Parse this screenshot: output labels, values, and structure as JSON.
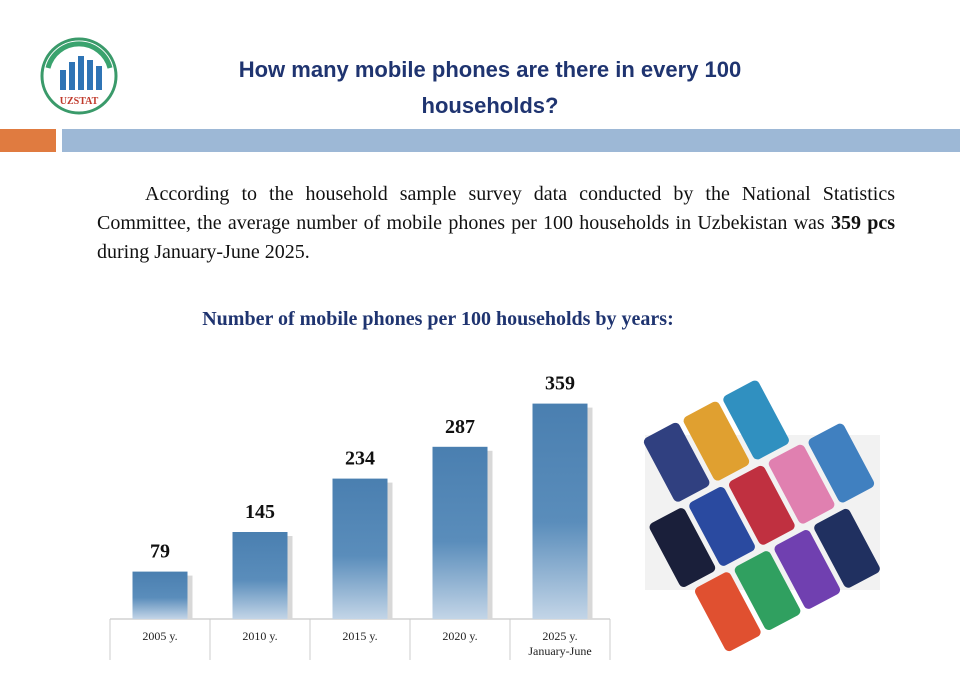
{
  "header": {
    "logo_text": "UZSTAT",
    "title": "How many mobile phones are there in every 100 households?"
  },
  "paragraph": {
    "text_before": "According to the household sample survey data conducted by the National Statistics Committee, the average number of mobile phones per 100 households in Uzbekistan was ",
    "highlight": "359 pcs",
    "text_after": " during January-June 2025."
  },
  "chart_data": {
    "type": "bar",
    "title": "Number of mobile phones per 100 households by years:",
    "categories": [
      "2005 y.",
      "2010 y.",
      "2015 y.",
      "2020 y.",
      "2025 y. January-June"
    ],
    "values": [
      79,
      145,
      234,
      287,
      359
    ],
    "color": "#4a7fb0"
  }
}
